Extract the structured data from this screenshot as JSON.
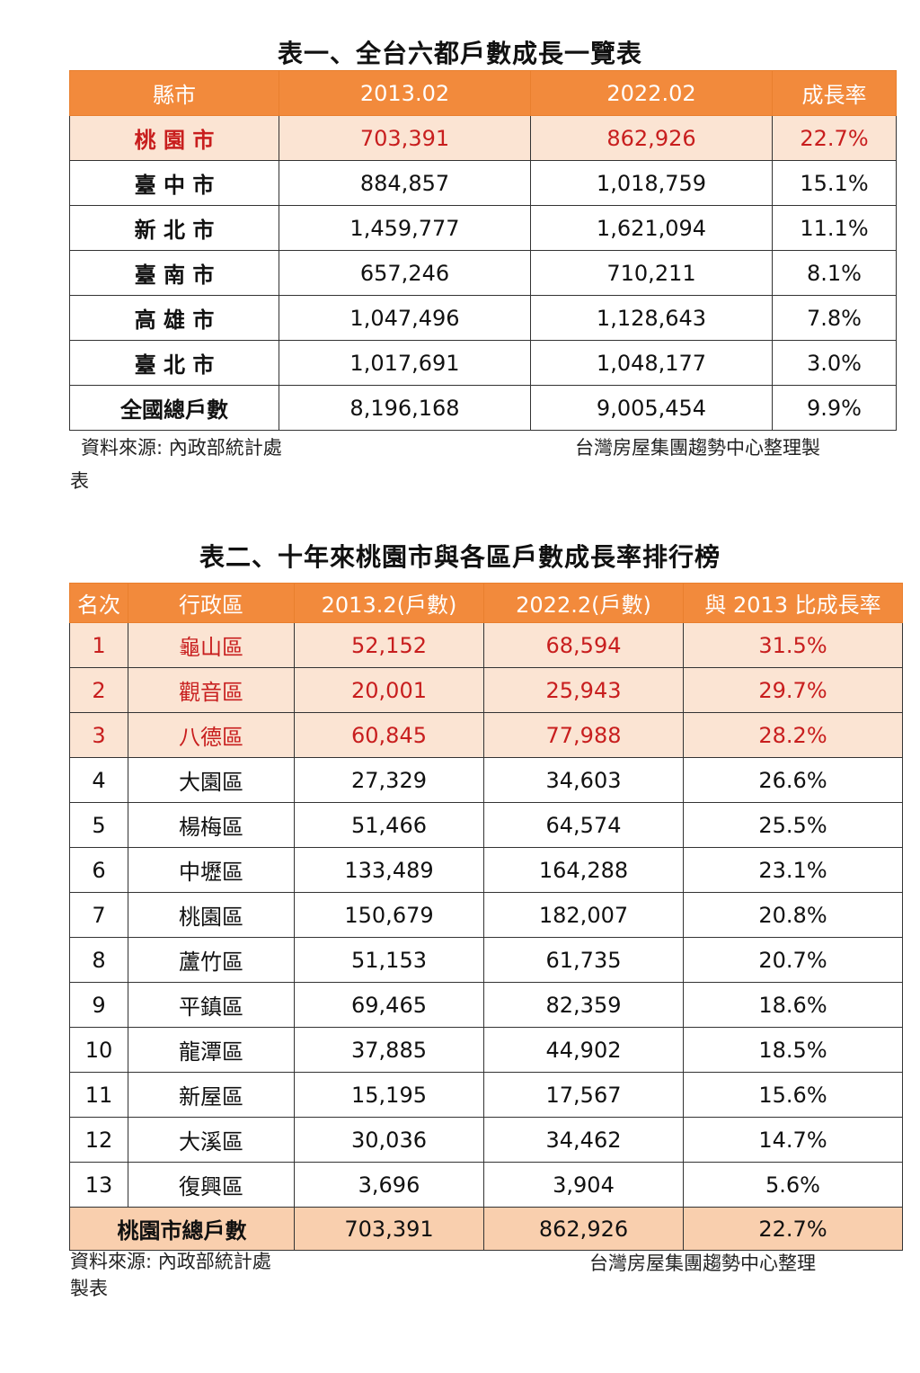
{
  "table1": {
    "title": "表一、全台六都戶數成長一覽表",
    "headers": [
      "縣市",
      "2013.02",
      "2022.02",
      "成長率"
    ],
    "rows": [
      [
        "桃 園 市",
        "703,391",
        "862,926",
        "22.7%"
      ],
      [
        "臺 中 市",
        "884,857",
        "1,018,759",
        "15.1%"
      ],
      [
        "新 北 市",
        "1,459,777",
        "1,621,094",
        "11.1%"
      ],
      [
        "臺 南 市",
        "657,246",
        "710,211",
        "8.1%"
      ],
      [
        "高 雄 市",
        "1,047,496",
        "1,128,643",
        "7.8%"
      ],
      [
        "臺 北 市",
        "1,017,691",
        "1,048,177",
        "3.0%"
      ],
      [
        "全國總戶數",
        "8,196,168",
        "9,005,454",
        "9.9%"
      ]
    ],
    "source_left": "資料來源: 內政部統計處",
    "source_right": "台灣房屋集團趨勢中心整理製",
    "source_wrap": "表"
  },
  "table2": {
    "title": "表二、十年來桃園市與各區戶數成長率排行榜",
    "headers": [
      "名次",
      "行政區",
      "2013.2(戶數)",
      "2022.2(戶數)",
      "與 2013 比成長率"
    ],
    "rows": [
      [
        "1",
        "龜山區",
        "52,152",
        "68,594",
        "31.5%"
      ],
      [
        "2",
        "觀音區",
        "20,001",
        "25,943",
        "29.7%"
      ],
      [
        "3",
        "八德區",
        "60,845",
        "77,988",
        "28.2%"
      ],
      [
        "4",
        "大園區",
        "27,329",
        "34,603",
        "26.6%"
      ],
      [
        "5",
        "楊梅區",
        "51,466",
        "64,574",
        "25.5%"
      ],
      [
        "6",
        "中壢區",
        "133,489",
        "164,288",
        "23.1%"
      ],
      [
        "7",
        "桃園區",
        "150,679",
        "182,007",
        "20.8%"
      ],
      [
        "8",
        "蘆竹區",
        "51,153",
        "61,735",
        "20.7%"
      ],
      [
        "9",
        "平鎮區",
        "69,465",
        "82,359",
        "18.6%"
      ],
      [
        "10",
        "龍潭區",
        "37,885",
        "44,902",
        "18.5%"
      ],
      [
        "11",
        "新屋區",
        "15,195",
        "17,567",
        "15.6%"
      ],
      [
        "12",
        "大溪區",
        "30,036",
        "34,462",
        "14.7%"
      ],
      [
        "13",
        "復興區",
        "3,696",
        "3,904",
        "5.6%"
      ]
    ],
    "total": [
      "桃園市總戶數",
      "703,391",
      "862,926",
      "22.7%"
    ],
    "source_left": "資料來源: 內政部統計處",
    "source_wrap": "製表",
    "source_right": "台灣房屋集團趨勢中心整理"
  }
}
